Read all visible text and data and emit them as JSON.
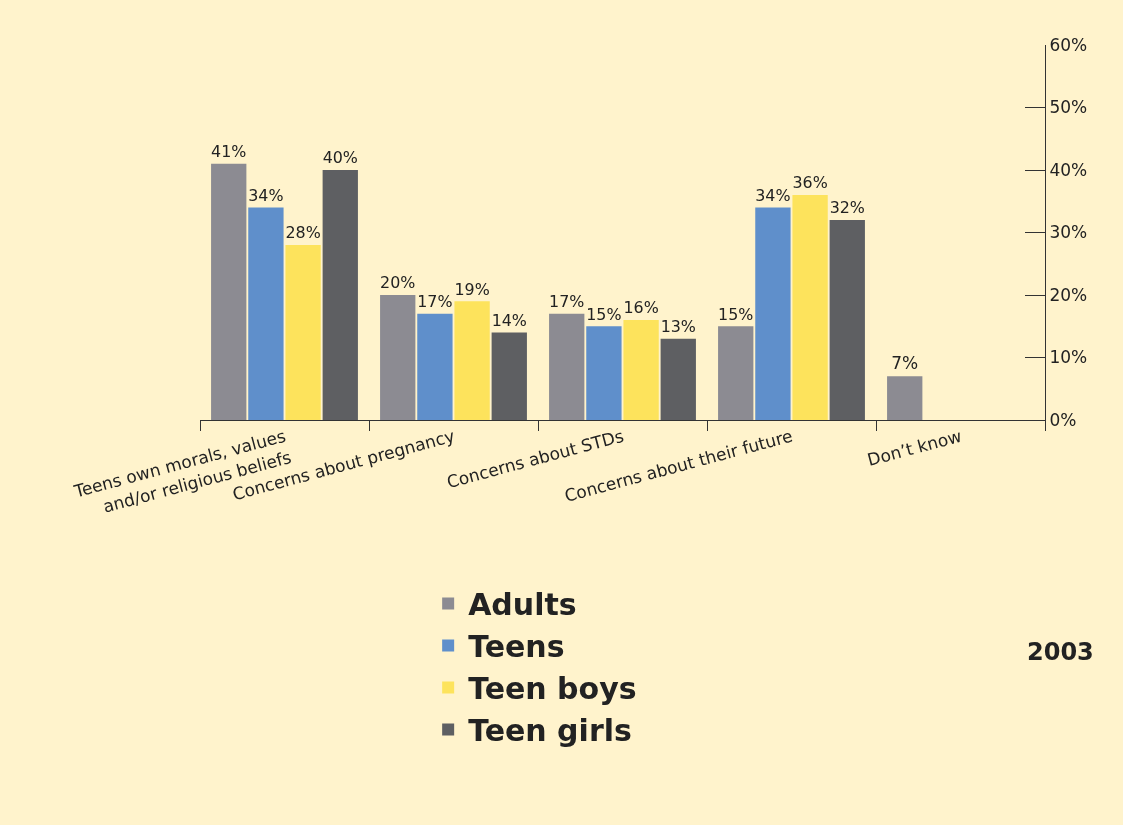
{
  "chart_data": {
    "type": "bar",
    "categories": [
      "Teens own morals, values\nand/or religious beliefs",
      "Concerns about pregnancy",
      "Concerns about STDs",
      "Concerns about their future",
      "Don’t know"
    ],
    "series": [
      {
        "name": "Adults",
        "color": "#8c8b92",
        "values": [
          41,
          20,
          17,
          15,
          7
        ],
        "value_labels": [
          "41%",
          "20%",
          "17%",
          "15%",
          "7%"
        ]
      },
      {
        "name": "Teens",
        "color": "#5f8fcb",
        "values": [
          34,
          17,
          15,
          34,
          null
        ],
        "value_labels": [
          "34%",
          "17%",
          "15%",
          "34%",
          null
        ]
      },
      {
        "name": "Teen boys",
        "color": "#fde35c",
        "values": [
          28,
          19,
          16,
          36,
          null
        ],
        "value_labels": [
          "28%",
          "19%",
          "16%",
          "36%",
          null
        ]
      },
      {
        "name": "Teen girls",
        "color": "#5e5f62",
        "values": [
          40,
          14,
          13,
          32,
          null
        ],
        "value_labels": [
          "40%",
          "14%",
          "13%",
          "32%",
          null
        ]
      }
    ],
    "ylim": [
      0,
      60
    ],
    "yticks": [
      {
        "value": 0,
        "label": "0%"
      },
      {
        "value": 10,
        "label": "10%"
      },
      {
        "value": 20,
        "label": "20%"
      },
      {
        "value": 30,
        "label": "30%"
      },
      {
        "value": 40,
        "label": "40%"
      },
      {
        "value": 50,
        "label": "50%"
      },
      {
        "value": 60,
        "label": "60%"
      }
    ],
    "grid": false,
    "legend": "bottom",
    "annotations": [
      "2003"
    ]
  }
}
